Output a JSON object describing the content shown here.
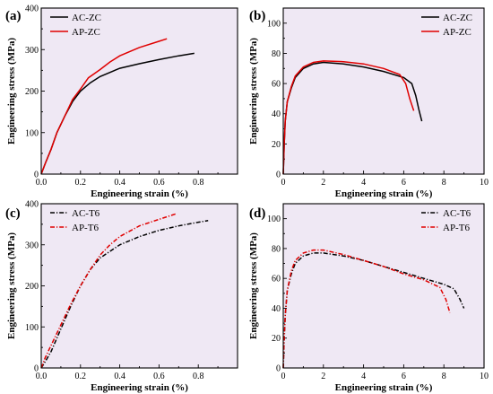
{
  "chart_data": [
    {
      "panel_label": "(a)",
      "type": "line",
      "xlabel": "Engineering strain (%)",
      "ylabel": "Engineering stress (MPa)",
      "xlim": [
        0,
        1.0
      ],
      "ylim": [
        0,
        400
      ],
      "xticks": [
        "0.0",
        "0.2",
        "0.4",
        "0.6",
        "0.8"
      ],
      "yticks": [
        "0",
        "100",
        "200",
        "300",
        "400"
      ],
      "legend_position": "top-left",
      "series": [
        {
          "name": "AC-ZC",
          "color": "#000000",
          "dash": "solid",
          "x": [
            0,
            0.02,
            0.05,
            0.08,
            0.12,
            0.16,
            0.2,
            0.25,
            0.3,
            0.4,
            0.5,
            0.6,
            0.7,
            0.78
          ],
          "y": [
            0,
            25,
            60,
            100,
            140,
            175,
            200,
            220,
            235,
            255,
            266,
            276,
            285,
            291
          ]
        },
        {
          "name": "AP-ZC",
          "color": "#e00000",
          "dash": "solid",
          "x": [
            0,
            0.02,
            0.05,
            0.08,
            0.12,
            0.16,
            0.2,
            0.24,
            0.3,
            0.35,
            0.4,
            0.5,
            0.6,
            0.64
          ],
          "y": [
            0,
            25,
            60,
            100,
            140,
            180,
            205,
            232,
            252,
            270,
            285,
            305,
            320,
            326
          ]
        }
      ]
    },
    {
      "panel_label": "(b)",
      "type": "line",
      "xlabel": "Engineering strain (%)",
      "ylabel": "Engineering stress (MPa)",
      "xlim": [
        0,
        10
      ],
      "ylim": [
        0,
        110
      ],
      "xticks": [
        "0",
        "2",
        "4",
        "6",
        "8",
        "10"
      ],
      "yticks": [
        "0",
        "20",
        "40",
        "60",
        "80",
        "100"
      ],
      "legend_position": "top-right",
      "series": [
        {
          "name": "AC-ZC",
          "color": "#000000",
          "dash": "solid",
          "x": [
            0,
            0.05,
            0.1,
            0.2,
            0.4,
            0.6,
            1.0,
            1.5,
            2.0,
            3.0,
            4.0,
            5.0,
            6.0,
            6.4,
            6.6,
            6.75,
            6.9
          ],
          "y": [
            0,
            20,
            35,
            48,
            57,
            64,
            70,
            73,
            74,
            73,
            71,
            68,
            64,
            60,
            52,
            43,
            35
          ]
        },
        {
          "name": "AP-ZC",
          "color": "#e00000",
          "dash": "solid",
          "x": [
            0,
            0.05,
            0.1,
            0.2,
            0.4,
            0.6,
            1.0,
            1.5,
            2.0,
            3.0,
            4.0,
            5.0,
            5.8,
            6.1,
            6.3,
            6.5
          ],
          "y": [
            0,
            20,
            35,
            48,
            58,
            65,
            71,
            74,
            75,
            74.5,
            73,
            70,
            66,
            60,
            50,
            42
          ]
        }
      ]
    },
    {
      "panel_label": "(c)",
      "type": "line",
      "xlabel": "Engineering strain (%)",
      "ylabel": "Engineering stress (MPa)",
      "xlim": [
        0,
        1.0
      ],
      "ylim": [
        0,
        400
      ],
      "xticks": [
        "0.0",
        "0.2",
        "0.4",
        "0.6",
        "0.8"
      ],
      "yticks": [
        "0",
        "100",
        "200",
        "300",
        "400"
      ],
      "legend_position": "top-left",
      "series": [
        {
          "name": "AC-T6",
          "color": "#000000",
          "dash": "dash-dot",
          "x": [
            0,
            0.02,
            0.05,
            0.1,
            0.15,
            0.2,
            0.25,
            0.3,
            0.4,
            0.5,
            0.6,
            0.7,
            0.8,
            0.85
          ],
          "y": [
            0,
            15,
            40,
            95,
            150,
            200,
            240,
            268,
            300,
            320,
            335,
            346,
            355,
            359
          ]
        },
        {
          "name": "AP-T6",
          "color": "#e00000",
          "dash": "dash-dot",
          "x": [
            0,
            0.02,
            0.05,
            0.1,
            0.15,
            0.2,
            0.25,
            0.3,
            0.35,
            0.4,
            0.5,
            0.6,
            0.69
          ],
          "y": [
            0,
            25,
            55,
            105,
            155,
            200,
            240,
            275,
            300,
            320,
            346,
            362,
            376
          ]
        }
      ]
    },
    {
      "panel_label": "(d)",
      "type": "line",
      "xlabel": "Engineering strain (%)",
      "ylabel": "Engineering stress (MPa)",
      "xlim": [
        0,
        10
      ],
      "ylim": [
        0,
        110
      ],
      "xticks": [
        "0",
        "2",
        "4",
        "6",
        "8",
        "10"
      ],
      "yticks": [
        "0",
        "20",
        "40",
        "60",
        "80",
        "100"
      ],
      "legend_position": "top-right",
      "series": [
        {
          "name": "AC-T6",
          "color": "#000000",
          "dash": "dash-dot",
          "x": [
            0,
            0.05,
            0.1,
            0.2,
            0.4,
            0.6,
            1.0,
            1.5,
            2.0,
            3.0,
            4.0,
            5.0,
            6.0,
            7.0,
            8.0,
            8.5,
            8.8,
            9.0
          ],
          "y": [
            0,
            20,
            35,
            52,
            63,
            70,
            75,
            77,
            77,
            75,
            72,
            68,
            64,
            60,
            56,
            53,
            46,
            40
          ]
        },
        {
          "name": "AP-T6",
          "color": "#e00000",
          "dash": "dash-dot",
          "x": [
            0,
            0.05,
            0.1,
            0.2,
            0.4,
            0.6,
            1.0,
            1.5,
            2.0,
            3.0,
            4.0,
            5.0,
            6.0,
            7.0,
            7.8,
            8.1,
            8.3
          ],
          "y": [
            0,
            20,
            35,
            52,
            65,
            72,
            77,
            79,
            79,
            76,
            72,
            68,
            63,
            59,
            54,
            46,
            37
          ]
        }
      ]
    }
  ]
}
